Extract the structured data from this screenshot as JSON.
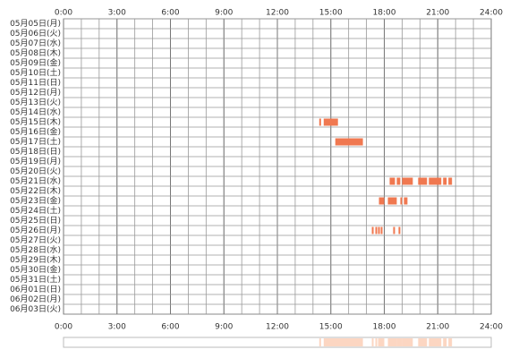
{
  "chart_data": {
    "type": "timeline",
    "xlim": [
      0,
      24
    ],
    "xticks": [
      {
        "value": 0,
        "label": "0:00"
      },
      {
        "value": 3,
        "label": "3:00"
      },
      {
        "value": 6,
        "label": "6:00"
      },
      {
        "value": 9,
        "label": "9:00"
      },
      {
        "value": 12,
        "label": "12:00"
      },
      {
        "value": 15,
        "label": "15:00"
      },
      {
        "value": 18,
        "label": "18:00"
      },
      {
        "value": 21,
        "label": "21:00"
      },
      {
        "value": 24,
        "label": "24:00"
      }
    ],
    "color": "#f07850",
    "overview_color": "#fcd6c2",
    "rows": [
      {
        "label": "05月05日(月)",
        "segments": []
      },
      {
        "label": "05月06日(火)",
        "segments": []
      },
      {
        "label": "05月07日(水)",
        "segments": []
      },
      {
        "label": "05月08日(木)",
        "segments": []
      },
      {
        "label": "05月09日(金)",
        "segments": []
      },
      {
        "label": "05月10日(土)",
        "segments": []
      },
      {
        "label": "05月11日(日)",
        "segments": []
      },
      {
        "label": "05月12日(月)",
        "segments": []
      },
      {
        "label": "05月13日(火)",
        "segments": []
      },
      {
        "label": "05月14日(水)",
        "segments": []
      },
      {
        "label": "05月15日(木)",
        "segments": [
          [
            14.35,
            14.45
          ],
          [
            14.6,
            15.4
          ]
        ]
      },
      {
        "label": "05月16日(金)",
        "segments": []
      },
      {
        "label": "05月17日(土)",
        "segments": [
          [
            15.25,
            16.8
          ]
        ]
      },
      {
        "label": "05月18日(日)",
        "segments": []
      },
      {
        "label": "05月19日(月)",
        "segments": []
      },
      {
        "label": "05月20日(火)",
        "segments": []
      },
      {
        "label": "05月21日(水)",
        "segments": [
          [
            18.3,
            18.6
          ],
          [
            18.7,
            18.9
          ],
          [
            19.0,
            19.6
          ],
          [
            19.9,
            20.4
          ],
          [
            20.5,
            21.2
          ],
          [
            21.3,
            21.5
          ],
          [
            21.6,
            21.8
          ]
        ]
      },
      {
        "label": "05月22日(木)",
        "segments": []
      },
      {
        "label": "05月23日(金)",
        "segments": [
          [
            17.7,
            18.0
          ],
          [
            18.2,
            18.7
          ],
          [
            18.9,
            19.0
          ],
          [
            19.1,
            19.3
          ]
        ]
      },
      {
        "label": "05月24日(土)",
        "segments": []
      },
      {
        "label": "05月25日(日)",
        "segments": []
      },
      {
        "label": "05月26日(月)",
        "segments": [
          [
            17.3,
            17.4
          ],
          [
            17.5,
            17.6
          ],
          [
            17.65,
            17.75
          ],
          [
            17.8,
            17.9
          ],
          [
            18.5,
            18.6
          ],
          [
            18.8,
            18.9
          ]
        ]
      },
      {
        "label": "05月27日(火)",
        "segments": []
      },
      {
        "label": "05月28日(水)",
        "segments": []
      },
      {
        "label": "05月29日(木)",
        "segments": []
      },
      {
        "label": "05月30日(金)",
        "segments": []
      },
      {
        "label": "05月31日(土)",
        "segments": []
      },
      {
        "label": "06月01日(日)",
        "segments": []
      },
      {
        "label": "06月02日(月)",
        "segments": []
      },
      {
        "label": "06月03日(火)",
        "segments": []
      }
    ]
  }
}
